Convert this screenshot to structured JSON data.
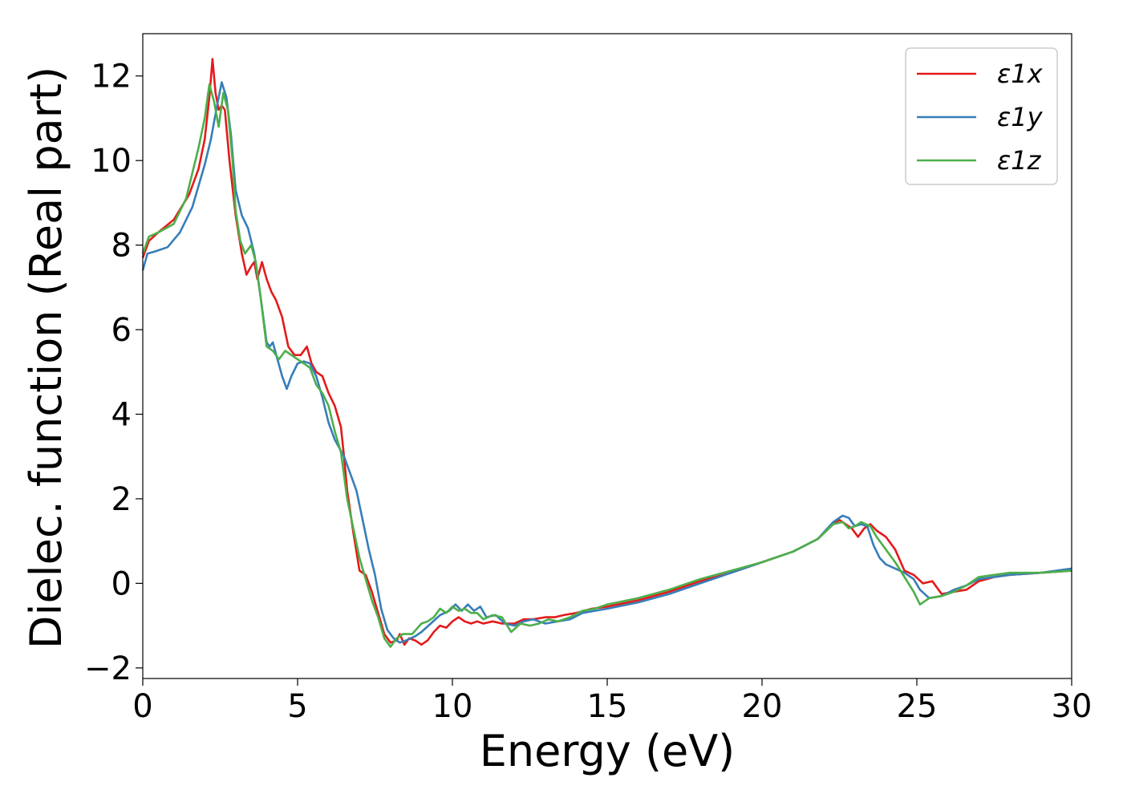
{
  "chart_data": {
    "type": "line",
    "title": "",
    "xlabel": "Energy (eV)",
    "ylabel": "Dielec. function (Real part)",
    "xlim": [
      0,
      30
    ],
    "ylim": [
      -2.25,
      13.0
    ],
    "xticks": [
      0,
      5,
      10,
      15,
      20,
      25,
      30
    ],
    "xtick_labels": [
      "0",
      "5",
      "10",
      "15",
      "20",
      "25",
      "30"
    ],
    "yticks": [
      -2,
      0,
      2,
      4,
      6,
      8,
      10,
      12
    ],
    "ytick_labels": [
      "−2",
      "0",
      "2",
      "4",
      "6",
      "8",
      "10",
      "12"
    ],
    "grid": false,
    "legend_position": "top-right",
    "series": [
      {
        "name": "ε1x",
        "color": "#e41a1c",
        "points": [
          [
            0,
            7.7
          ],
          [
            0.2,
            8.1
          ],
          [
            0.5,
            8.3
          ],
          [
            1.0,
            8.6
          ],
          [
            1.5,
            9.2
          ],
          [
            1.8,
            9.8
          ],
          [
            2.0,
            10.5
          ],
          [
            2.15,
            11.5
          ],
          [
            2.25,
            12.4
          ],
          [
            2.35,
            11.6
          ],
          [
            2.45,
            11.2
          ],
          [
            2.55,
            11.3
          ],
          [
            2.65,
            11.2
          ],
          [
            2.8,
            10.0
          ],
          [
            3.0,
            8.7
          ],
          [
            3.2,
            7.8
          ],
          [
            3.35,
            7.3
          ],
          [
            3.5,
            7.5
          ],
          [
            3.6,
            7.6
          ],
          [
            3.7,
            7.2
          ],
          [
            3.85,
            7.6
          ],
          [
            4.0,
            7.2
          ],
          [
            4.15,
            6.9
          ],
          [
            4.3,
            6.7
          ],
          [
            4.5,
            6.3
          ],
          [
            4.7,
            5.6
          ],
          [
            4.9,
            5.4
          ],
          [
            5.1,
            5.4
          ],
          [
            5.3,
            5.6
          ],
          [
            5.45,
            5.2
          ],
          [
            5.6,
            5.0
          ],
          [
            5.8,
            4.9
          ],
          [
            6.0,
            4.5
          ],
          [
            6.2,
            4.2
          ],
          [
            6.4,
            3.7
          ],
          [
            6.5,
            3.0
          ],
          [
            6.6,
            2.2
          ],
          [
            6.8,
            1.2
          ],
          [
            7.0,
            0.3
          ],
          [
            7.2,
            0.2
          ],
          [
            7.4,
            -0.2
          ],
          [
            7.6,
            -0.7
          ],
          [
            7.8,
            -1.2
          ],
          [
            8.0,
            -1.4
          ],
          [
            8.2,
            -1.35
          ],
          [
            8.3,
            -1.2
          ],
          [
            8.45,
            -1.45
          ],
          [
            8.6,
            -1.3
          ],
          [
            8.8,
            -1.35
          ],
          [
            9.0,
            -1.45
          ],
          [
            9.2,
            -1.35
          ],
          [
            9.4,
            -1.15
          ],
          [
            9.6,
            -1.0
          ],
          [
            9.8,
            -1.05
          ],
          [
            10.0,
            -0.9
          ],
          [
            10.2,
            -0.8
          ],
          [
            10.4,
            -0.9
          ],
          [
            10.6,
            -0.95
          ],
          [
            10.8,
            -0.9
          ],
          [
            11.0,
            -0.95
          ],
          [
            11.3,
            -0.9
          ],
          [
            11.6,
            -0.95
          ],
          [
            12.0,
            -0.95
          ],
          [
            12.3,
            -0.85
          ],
          [
            12.6,
            -0.85
          ],
          [
            13.0,
            -0.8
          ],
          [
            13.3,
            -0.8
          ],
          [
            13.6,
            -0.75
          ],
          [
            14.0,
            -0.7
          ],
          [
            14.5,
            -0.6
          ],
          [
            15.0,
            -0.55
          ],
          [
            16.0,
            -0.4
          ],
          [
            17.0,
            -0.2
          ],
          [
            18.0,
            0.05
          ],
          [
            19.0,
            0.25
          ],
          [
            20.0,
            0.5
          ],
          [
            21.0,
            0.75
          ],
          [
            21.8,
            1.05
          ],
          [
            22.3,
            1.4
          ],
          [
            22.5,
            1.5
          ],
          [
            22.7,
            1.4
          ],
          [
            22.9,
            1.3
          ],
          [
            23.1,
            1.1
          ],
          [
            23.3,
            1.3
          ],
          [
            23.5,
            1.4
          ],
          [
            23.7,
            1.25
          ],
          [
            24.0,
            1.1
          ],
          [
            24.3,
            0.8
          ],
          [
            24.6,
            0.3
          ],
          [
            24.9,
            0.2
          ],
          [
            25.2,
            0.0
          ],
          [
            25.5,
            0.05
          ],
          [
            25.8,
            -0.25
          ],
          [
            26.2,
            -0.2
          ],
          [
            26.6,
            -0.15
          ],
          [
            27.0,
            0.05
          ],
          [
            27.5,
            0.15
          ],
          [
            28.0,
            0.2
          ],
          [
            29.0,
            0.25
          ],
          [
            30.0,
            0.3
          ]
        ]
      },
      {
        "name": "ε1y",
        "color": "#377eb8",
        "points": [
          [
            0,
            7.4
          ],
          [
            0.15,
            7.8
          ],
          [
            0.4,
            7.85
          ],
          [
            0.8,
            7.95
          ],
          [
            1.2,
            8.3
          ],
          [
            1.6,
            8.9
          ],
          [
            2.0,
            9.9
          ],
          [
            2.2,
            10.5
          ],
          [
            2.4,
            11.3
          ],
          [
            2.55,
            11.85
          ],
          [
            2.7,
            11.5
          ],
          [
            2.85,
            10.6
          ],
          [
            3.0,
            9.3
          ],
          [
            3.2,
            8.7
          ],
          [
            3.4,
            8.4
          ],
          [
            3.6,
            7.8
          ],
          [
            3.8,
            6.8
          ],
          [
            4.0,
            5.7
          ],
          [
            4.1,
            5.6
          ],
          [
            4.2,
            5.7
          ],
          [
            4.35,
            5.3
          ],
          [
            4.5,
            4.9
          ],
          [
            4.65,
            4.6
          ],
          [
            4.8,
            4.9
          ],
          [
            5.0,
            5.2
          ],
          [
            5.2,
            5.25
          ],
          [
            5.4,
            5.2
          ],
          [
            5.6,
            4.9
          ],
          [
            5.8,
            4.4
          ],
          [
            6.0,
            3.8
          ],
          [
            6.2,
            3.4
          ],
          [
            6.5,
            3.0
          ],
          [
            6.7,
            2.6
          ],
          [
            6.9,
            2.2
          ],
          [
            7.1,
            1.5
          ],
          [
            7.3,
            0.8
          ],
          [
            7.5,
            0.2
          ],
          [
            7.7,
            -0.6
          ],
          [
            7.9,
            -1.1
          ],
          [
            8.1,
            -1.3
          ],
          [
            8.3,
            -1.4
          ],
          [
            8.5,
            -1.35
          ],
          [
            8.8,
            -1.25
          ],
          [
            9.0,
            -1.15
          ],
          [
            9.3,
            -0.95
          ],
          [
            9.6,
            -0.75
          ],
          [
            9.9,
            -0.65
          ],
          [
            10.1,
            -0.5
          ],
          [
            10.3,
            -0.65
          ],
          [
            10.5,
            -0.5
          ],
          [
            10.7,
            -0.65
          ],
          [
            10.9,
            -0.55
          ],
          [
            11.1,
            -0.8
          ],
          [
            11.4,
            -0.75
          ],
          [
            11.7,
            -0.95
          ],
          [
            12.0,
            -1.0
          ],
          [
            12.3,
            -0.9
          ],
          [
            12.6,
            -0.85
          ],
          [
            13.0,
            -0.95
          ],
          [
            13.4,
            -0.9
          ],
          [
            13.8,
            -0.85
          ],
          [
            14.2,
            -0.7
          ],
          [
            14.6,
            -0.65
          ],
          [
            15.0,
            -0.6
          ],
          [
            16.0,
            -0.45
          ],
          [
            17.0,
            -0.25
          ],
          [
            18.0,
            0.0
          ],
          [
            19.0,
            0.25
          ],
          [
            20.0,
            0.5
          ],
          [
            21.0,
            0.75
          ],
          [
            21.8,
            1.05
          ],
          [
            22.3,
            1.45
          ],
          [
            22.6,
            1.6
          ],
          [
            22.8,
            1.55
          ],
          [
            23.0,
            1.35
          ],
          [
            23.2,
            1.4
          ],
          [
            23.4,
            1.35
          ],
          [
            23.6,
            0.9
          ],
          [
            23.8,
            0.6
          ],
          [
            24.0,
            0.45
          ],
          [
            24.3,
            0.35
          ],
          [
            24.6,
            0.25
          ],
          [
            24.9,
            0.1
          ],
          [
            25.1,
            -0.15
          ],
          [
            25.4,
            -0.35
          ],
          [
            25.8,
            -0.3
          ],
          [
            26.2,
            -0.15
          ],
          [
            26.6,
            -0.05
          ],
          [
            27.0,
            0.1
          ],
          [
            27.5,
            0.15
          ],
          [
            28.0,
            0.2
          ],
          [
            29.0,
            0.25
          ],
          [
            30.0,
            0.35
          ]
        ]
      },
      {
        "name": "ε1z",
        "color": "#4daf4a",
        "points": [
          [
            0,
            7.8
          ],
          [
            0.2,
            8.2
          ],
          [
            0.5,
            8.3
          ],
          [
            1.0,
            8.5
          ],
          [
            1.4,
            9.1
          ],
          [
            1.8,
            10.3
          ],
          [
            2.0,
            11.0
          ],
          [
            2.15,
            11.8
          ],
          [
            2.3,
            11.4
          ],
          [
            2.45,
            10.8
          ],
          [
            2.6,
            11.6
          ],
          [
            2.75,
            11.2
          ],
          [
            2.9,
            10.0
          ],
          [
            3.0,
            8.8
          ],
          [
            3.15,
            8.1
          ],
          [
            3.3,
            7.8
          ],
          [
            3.5,
            8.0
          ],
          [
            3.65,
            7.6
          ],
          [
            3.8,
            6.8
          ],
          [
            4.0,
            5.6
          ],
          [
            4.2,
            5.5
          ],
          [
            4.4,
            5.3
          ],
          [
            4.6,
            5.5
          ],
          [
            4.8,
            5.4
          ],
          [
            5.0,
            5.3
          ],
          [
            5.2,
            5.2
          ],
          [
            5.4,
            5.1
          ],
          [
            5.6,
            4.7
          ],
          [
            5.8,
            4.5
          ],
          [
            6.0,
            4.2
          ],
          [
            6.2,
            3.6
          ],
          [
            6.4,
            3.1
          ],
          [
            6.6,
            2.0
          ],
          [
            6.8,
            1.3
          ],
          [
            7.0,
            0.6
          ],
          [
            7.2,
            0.1
          ],
          [
            7.4,
            -0.4
          ],
          [
            7.6,
            -0.8
          ],
          [
            7.8,
            -1.3
          ],
          [
            8.0,
            -1.5
          ],
          [
            8.2,
            -1.3
          ],
          [
            8.4,
            -1.2
          ],
          [
            8.7,
            -1.2
          ],
          [
            9.0,
            -0.95
          ],
          [
            9.2,
            -0.9
          ],
          [
            9.4,
            -0.8
          ],
          [
            9.6,
            -0.6
          ],
          [
            9.8,
            -0.7
          ],
          [
            10.0,
            -0.55
          ],
          [
            10.2,
            -0.65
          ],
          [
            10.4,
            -0.6
          ],
          [
            10.6,
            -0.7
          ],
          [
            10.8,
            -0.7
          ],
          [
            11.0,
            -0.85
          ],
          [
            11.3,
            -0.75
          ],
          [
            11.6,
            -0.8
          ],
          [
            11.9,
            -1.15
          ],
          [
            12.2,
            -0.95
          ],
          [
            12.5,
            -1.0
          ],
          [
            12.8,
            -0.95
          ],
          [
            13.1,
            -0.85
          ],
          [
            13.4,
            -0.9
          ],
          [
            13.8,
            -0.8
          ],
          [
            14.2,
            -0.65
          ],
          [
            14.6,
            -0.6
          ],
          [
            15.0,
            -0.5
          ],
          [
            16.0,
            -0.35
          ],
          [
            17.0,
            -0.15
          ],
          [
            18.0,
            0.1
          ],
          [
            19.0,
            0.3
          ],
          [
            20.0,
            0.5
          ],
          [
            21.0,
            0.75
          ],
          [
            21.8,
            1.05
          ],
          [
            22.3,
            1.4
          ],
          [
            22.6,
            1.45
          ],
          [
            22.8,
            1.3
          ],
          [
            23.0,
            1.35
          ],
          [
            23.2,
            1.45
          ],
          [
            23.5,
            1.35
          ],
          [
            23.7,
            1.1
          ],
          [
            24.0,
            0.8
          ],
          [
            24.3,
            0.5
          ],
          [
            24.6,
            0.15
          ],
          [
            24.9,
            -0.2
          ],
          [
            25.1,
            -0.5
          ],
          [
            25.4,
            -0.35
          ],
          [
            25.8,
            -0.3
          ],
          [
            26.2,
            -0.2
          ],
          [
            26.6,
            -0.05
          ],
          [
            27.0,
            0.15
          ],
          [
            27.5,
            0.2
          ],
          [
            28.0,
            0.25
          ],
          [
            29.0,
            0.25
          ],
          [
            30.0,
            0.3
          ]
        ]
      }
    ]
  }
}
